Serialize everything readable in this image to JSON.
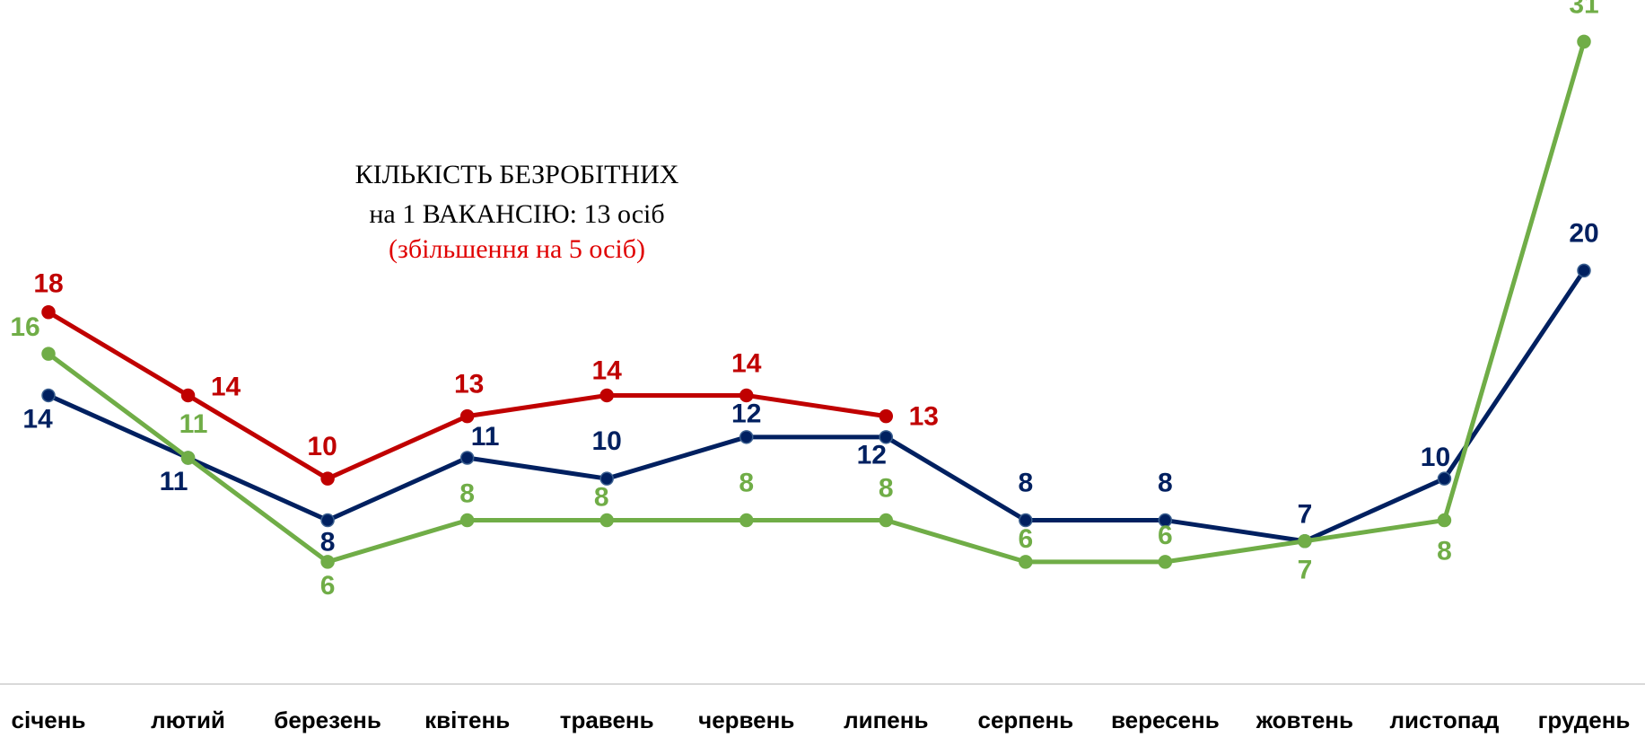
{
  "chart_data": {
    "type": "line",
    "annotation": [
      "КІЛЬКІСТЬ БЕЗРОБІТНИХ",
      "на 1 ВАКАНСІЮ: 13 осіб",
      "(збільшення на 5 осіб)"
    ],
    "categories": [
      "січень",
      "лютий",
      "березень",
      "квітень",
      "травень",
      "червень",
      "липень",
      "серпень",
      "вересень",
      "жовтень",
      "листопад",
      "грудень"
    ],
    "series": [
      {
        "color": "#c00000",
        "values": [
          18,
          14,
          10,
          13,
          14,
          14,
          13,
          null,
          null,
          null,
          null,
          null
        ]
      },
      {
        "color": "#002060",
        "values": [
          14,
          11,
          8,
          11,
          10,
          12,
          12,
          8,
          8,
          7,
          10,
          20
        ]
      },
      {
        "color": "#70ad47",
        "values": [
          16,
          11,
          6,
          8,
          8,
          8,
          8,
          6,
          6,
          7,
          8,
          31
        ]
      }
    ],
    "ylim": [
      0,
      33
    ]
  }
}
